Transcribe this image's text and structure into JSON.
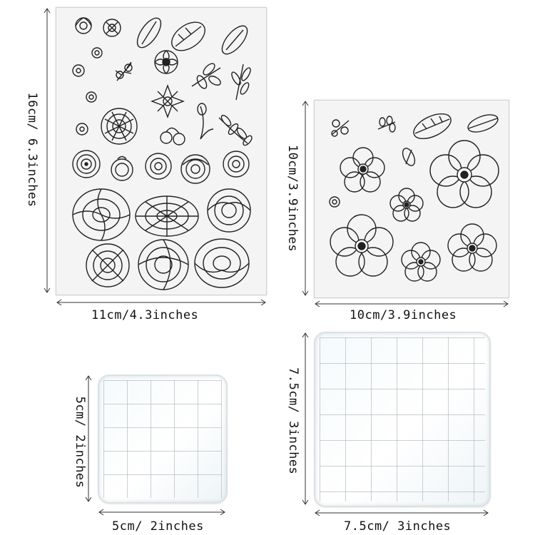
{
  "labels": {
    "sheet1_height": "16cm/ 6.3inches",
    "sheet1_width": "11cm/4.3inches",
    "sheet2_height": "10cm/3.9inches",
    "sheet2_width": "10cm/3.9inches",
    "block1_height": "5cm/ 2inches",
    "block1_width": "5cm/ 2inches",
    "block2_height": "7.5cm/ 3inches",
    "block2_width": "7.5cm/ 3inches"
  }
}
